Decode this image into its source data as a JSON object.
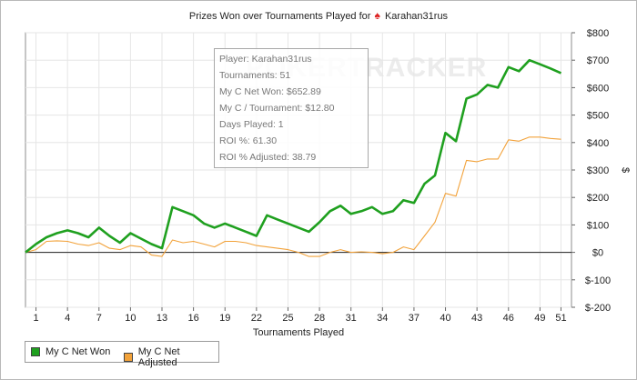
{
  "chart_data": {
    "type": "line",
    "title_prefix": "Prizes Won over Tournaments Played for",
    "title_icon": "spade-icon",
    "player_name": "Karahan31rus",
    "xlabel": "Tournaments Played",
    "ylabel": "$",
    "xlim": [
      0,
      52
    ],
    "ylim": [
      -200,
      800
    ],
    "x_ticks": [
      1,
      4,
      7,
      10,
      13,
      16,
      19,
      22,
      25,
      28,
      31,
      34,
      37,
      40,
      43,
      46,
      49,
      51
    ],
    "y_ticks": [
      800,
      700,
      600,
      500,
      400,
      300,
      200,
      100,
      0,
      -100,
      -200
    ],
    "y_tick_labels": [
      "$800",
      "$700",
      "$600",
      "$500",
      "$400",
      "$300",
      "$200",
      "$100",
      "$0",
      "$-100",
      "$-200"
    ],
    "grid": true,
    "legend_position": "bottom-left",
    "x": [
      0,
      1,
      2,
      3,
      4,
      5,
      6,
      7,
      8,
      9,
      10,
      11,
      12,
      13,
      14,
      15,
      16,
      17,
      18,
      19,
      20,
      21,
      22,
      23,
      24,
      25,
      26,
      27,
      28,
      29,
      30,
      31,
      32,
      33,
      34,
      35,
      36,
      37,
      38,
      39,
      40,
      41,
      42,
      43,
      44,
      45,
      46,
      47,
      48,
      49,
      50,
      51
    ],
    "series": [
      {
        "name": "My C Net Won",
        "color": "#1fa01f",
        "values": [
          0,
          30,
          55,
          70,
          80,
          70,
          55,
          90,
          60,
          35,
          70,
          50,
          30,
          15,
          165,
          150,
          135,
          105,
          90,
          105,
          90,
          75,
          60,
          135,
          120,
          105,
          90,
          75,
          110,
          150,
          170,
          140,
          150,
          165,
          140,
          150,
          190,
          180,
          250,
          280,
          435,
          405,
          560,
          575,
          610,
          600,
          675,
          660,
          700,
          685,
          670,
          652.89
        ]
      },
      {
        "name": "My C Net Adjusted",
        "color": "#f2a23a",
        "values": [
          0,
          10,
          40,
          42,
          40,
          30,
          25,
          35,
          15,
          10,
          25,
          20,
          -10,
          -15,
          45,
          35,
          40,
          30,
          20,
          40,
          40,
          35,
          25,
          20,
          15,
          10,
          0,
          -15,
          -15,
          0,
          10,
          0,
          2,
          0,
          -5,
          0,
          20,
          10,
          60,
          110,
          215,
          205,
          335,
          330,
          340,
          340,
          410,
          405,
          420,
          420,
          415,
          412
        ]
      }
    ]
  },
  "tooltip": {
    "rows": [
      "Player: Karahan31rus",
      "Tournaments: 51",
      "My C Net Won: $652.89",
      "My C / Tournament: $12.80",
      "Days Played: 1",
      "ROI %: 61.30",
      "ROI % Adjusted: 38.79"
    ]
  },
  "watermark": "POKERTRACKER"
}
